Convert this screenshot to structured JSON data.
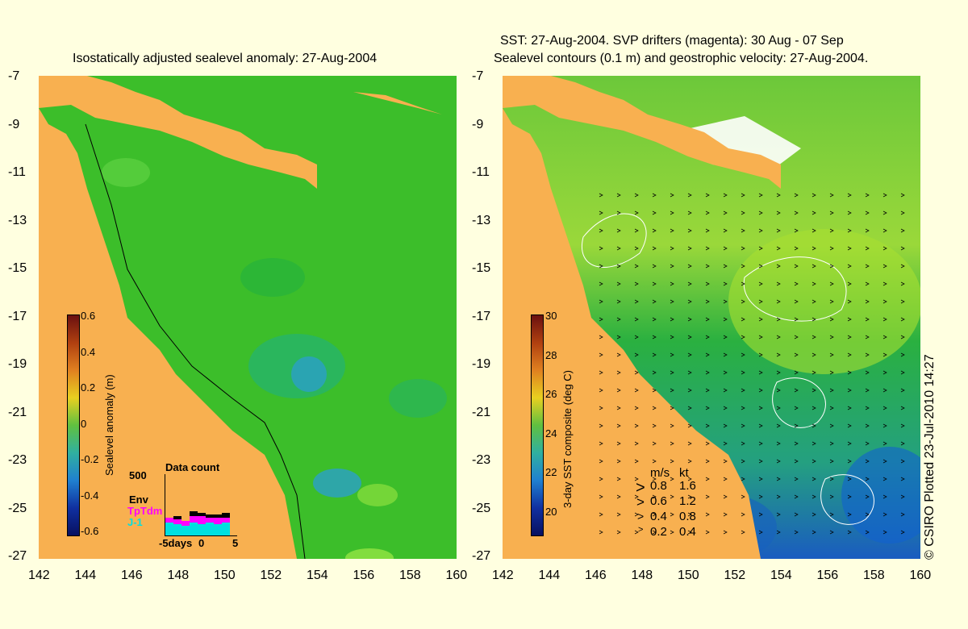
{
  "left_panel": {
    "title": "Isostatically adjusted sealevel anomaly: 27-Aug-2004",
    "colorbar_label": "Sealevel anomaly (m)",
    "colorbar_ticks": [
      "0.6",
      "0.4",
      "0.2",
      "0",
      "-0.2",
      "-0.4",
      "-0.6"
    ],
    "data_count": {
      "title": "Data count",
      "ymax": "500",
      "satellites": [
        "Env",
        "TpTdm",
        "J-1"
      ],
      "satellite_colors": [
        "#000000",
        "#ff00ff",
        "#00e0e0"
      ],
      "xticks": [
        "-5days",
        "0",
        "5"
      ]
    }
  },
  "right_panel": {
    "title_line1": "SST: 27-Aug-2004. SVP drifters (magenta): 30 Aug - 07 Sep",
    "title_line2": "Sealevel contours (0.1 m) and geostrophic velocity: 27-Aug-2004.",
    "colorbar_label": "3-day SST composite (deg C)",
    "colorbar_ticks": [
      "30",
      "28",
      "26",
      "24",
      "22",
      "20"
    ],
    "velocity_legend": {
      "units_ms": "m/s",
      "units_kt": "kt",
      "rows": [
        {
          "ms": "0.8",
          "kt": "1.6"
        },
        {
          "ms": "0.6",
          "kt": "1.2"
        },
        {
          "ms": "0.4",
          "kt": "0.8"
        },
        {
          "ms": "0.2",
          "kt": "0.4"
        }
      ]
    }
  },
  "lat_ticks": [
    "-7",
    "-9",
    "-11",
    "-13",
    "-15",
    "-17",
    "-19",
    "-21",
    "-23",
    "-25",
    "-27"
  ],
  "lon_ticks": [
    "142",
    "144",
    "146",
    "148",
    "150",
    "152",
    "154",
    "156",
    "158",
    "160"
  ],
  "copyright": "© CSIRO Plotted 23-Jul-2010 14:27",
  "colors": {
    "land": "#f8b050",
    "background": "#ffffe0",
    "sla_base": "#3cbe2a",
    "sst_base": "#2aa84a"
  }
}
